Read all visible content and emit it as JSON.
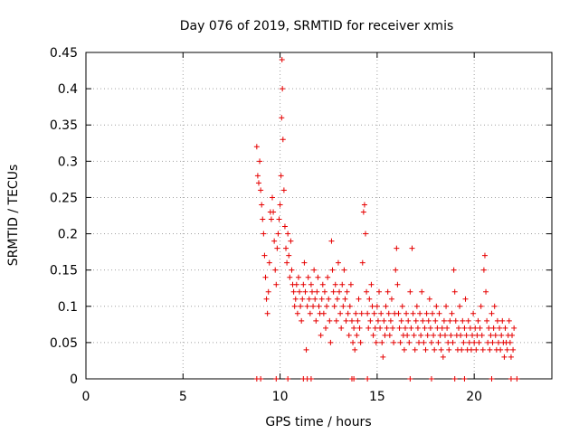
{
  "chart_data": {
    "type": "scatter",
    "title": "Day 076 of 2019, SRMTID for receiver xmis",
    "xlabel": "GPS time / hours",
    "ylabel": "SRMTID / TECUs",
    "xlim": [
      0,
      24
    ],
    "ylim": [
      0,
      0.45
    ],
    "xticks": [
      0,
      5,
      10,
      15,
      20
    ],
    "yticks": [
      0,
      0.05,
      0.1,
      0.15,
      0.2,
      0.25,
      0.3,
      0.35,
      0.4,
      0.45
    ],
    "xtick_labels": [
      "0",
      "5",
      "10",
      "15",
      "20"
    ],
    "ytick_labels": [
      "0",
      "0.05",
      "0.1",
      "0.15",
      "0.2",
      "0.25",
      "0.3",
      "0.35",
      "0.4",
      "0.45"
    ],
    "grid": true,
    "marker": "+",
    "color": "#e60000",
    "series": [
      {
        "name": "SRMTID",
        "points": [
          [
            8.8,
            0.32
          ],
          [
            8.85,
            0.28
          ],
          [
            8.9,
            0.27
          ],
          [
            8.95,
            0.3
          ],
          [
            9.0,
            0.26
          ],
          [
            9.05,
            0.24
          ],
          [
            9.1,
            0.22
          ],
          [
            9.15,
            0.2
          ],
          [
            9.2,
            0.17
          ],
          [
            9.25,
            0.14
          ],
          [
            9.3,
            0.11
          ],
          [
            9.35,
            0.09
          ],
          [
            9.4,
            0.12
          ],
          [
            9.45,
            0.16
          ],
          [
            9.5,
            0.23
          ],
          [
            9.55,
            0.22
          ],
          [
            9.6,
            0.25
          ],
          [
            9.65,
            0.23
          ],
          [
            9.7,
            0.19
          ],
          [
            9.75,
            0.15
          ],
          [
            9.8,
            0.13
          ],
          [
            9.85,
            0.18
          ],
          [
            9.9,
            0.2
          ],
          [
            9.95,
            0.22
          ],
          [
            10.0,
            0.24
          ],
          [
            10.05,
            0.28
          ],
          [
            10.08,
            0.36
          ],
          [
            10.1,
            0.44
          ],
          [
            10.12,
            0.4
          ],
          [
            10.15,
            0.33
          ],
          [
            10.2,
            0.26
          ],
          [
            10.25,
            0.21
          ],
          [
            10.3,
            0.18
          ],
          [
            10.35,
            0.16
          ],
          [
            10.4,
            0.2
          ],
          [
            10.45,
            0.17
          ],
          [
            10.5,
            0.14
          ],
          [
            10.55,
            0.19
          ],
          [
            10.6,
            0.15
          ],
          [
            10.65,
            0.13
          ],
          [
            10.7,
            0.12
          ],
          [
            10.75,
            0.1
          ],
          [
            10.8,
            0.11
          ],
          [
            10.85,
            0.13
          ],
          [
            10.9,
            0.09
          ],
          [
            10.95,
            0.14
          ],
          [
            11.0,
            0.12
          ],
          [
            11.05,
            0.1
          ],
          [
            11.1,
            0.08
          ],
          [
            11.15,
            0.11
          ],
          [
            11.2,
            0.13
          ],
          [
            11.25,
            0.16
          ],
          [
            11.3,
            0.12
          ],
          [
            11.35,
            0.04
          ],
          [
            11.4,
            0.1
          ],
          [
            11.45,
            0.14
          ],
          [
            11.5,
            0.11
          ],
          [
            11.55,
            0.09
          ],
          [
            11.6,
            0.13
          ],
          [
            11.65,
            0.12
          ],
          [
            11.7,
            0.1
          ],
          [
            11.75,
            0.15
          ],
          [
            11.8,
            0.11
          ],
          [
            11.85,
            0.08
          ],
          [
            11.9,
            0.12
          ],
          [
            11.95,
            0.14
          ],
          [
            12.0,
            0.1
          ],
          [
            12.05,
            0.09
          ],
          [
            12.1,
            0.06
          ],
          [
            12.15,
            0.11
          ],
          [
            12.2,
            0.13
          ],
          [
            12.25,
            0.09
          ],
          [
            12.3,
            0.12
          ],
          [
            12.35,
            0.07
          ],
          [
            12.4,
            0.1
          ],
          [
            12.45,
            0.14
          ],
          [
            12.5,
            0.11
          ],
          [
            12.55,
            0.08
          ],
          [
            12.6,
            0.05
          ],
          [
            12.65,
            0.19
          ],
          [
            12.7,
            0.15
          ],
          [
            12.75,
            0.12
          ],
          [
            12.8,
            0.1
          ],
          [
            12.85,
            0.13
          ],
          [
            12.9,
            0.08
          ],
          [
            12.95,
            0.11
          ],
          [
            13.0,
            0.16
          ],
          [
            13.05,
            0.12
          ],
          [
            13.1,
            0.09
          ],
          [
            13.15,
            0.07
          ],
          [
            13.2,
            0.13
          ],
          [
            13.25,
            0.1
          ],
          [
            13.3,
            0.15
          ],
          [
            13.35,
            0.11
          ],
          [
            13.4,
            0.08
          ],
          [
            13.45,
            0.12
          ],
          [
            13.5,
            0.09
          ],
          [
            13.55,
            0.06
          ],
          [
            13.6,
            0.1
          ],
          [
            13.65,
            0.13
          ],
          [
            13.7,
            0.08
          ],
          [
            13.75,
            0.05
          ],
          [
            13.8,
            0.07
          ],
          [
            13.85,
            0.04
          ],
          [
            13.9,
            0.09
          ],
          [
            13.95,
            0.06
          ],
          [
            14.0,
            0.08
          ],
          [
            14.05,
            0.11
          ],
          [
            14.1,
            0.07
          ],
          [
            14.15,
            0.05
          ],
          [
            14.2,
            0.09
          ],
          [
            14.25,
            0.16
          ],
          [
            14.3,
            0.23
          ],
          [
            14.35,
            0.24
          ],
          [
            14.4,
            0.2
          ],
          [
            14.45,
            0.12
          ],
          [
            14.5,
            0.09
          ],
          [
            14.55,
            0.07
          ],
          [
            14.6,
            0.11
          ],
          [
            14.65,
            0.08
          ],
          [
            14.7,
            0.13
          ],
          [
            14.75,
            0.1
          ],
          [
            14.8,
            0.06
          ],
          [
            14.85,
            0.09
          ],
          [
            14.9,
            0.07
          ],
          [
            14.95,
            0.05
          ],
          [
            15.0,
            0.1
          ],
          [
            15.05,
            0.08
          ],
          [
            15.1,
            0.12
          ],
          [
            15.15,
            0.07
          ],
          [
            15.2,
            0.09
          ],
          [
            15.25,
            0.05
          ],
          [
            15.3,
            0.03
          ],
          [
            15.35,
            0.08
          ],
          [
            15.4,
            0.06
          ],
          [
            15.45,
            0.1
          ],
          [
            15.5,
            0.07
          ],
          [
            15.55,
            0.12
          ],
          [
            15.6,
            0.09
          ],
          [
            15.65,
            0.06
          ],
          [
            15.7,
            0.08
          ],
          [
            15.75,
            0.11
          ],
          [
            15.8,
            0.07
          ],
          [
            15.85,
            0.05
          ],
          [
            15.9,
            0.09
          ],
          [
            15.95,
            0.15
          ],
          [
            16.0,
            0.18
          ],
          [
            16.05,
            0.13
          ],
          [
            16.1,
            0.09
          ],
          [
            16.15,
            0.07
          ],
          [
            16.2,
            0.05
          ],
          [
            16.25,
            0.08
          ],
          [
            16.3,
            0.1
          ],
          [
            16.35,
            0.06
          ],
          [
            16.4,
            0.04
          ],
          [
            16.45,
            0.07
          ],
          [
            16.5,
            0.09
          ],
          [
            16.55,
            0.06
          ],
          [
            16.6,
            0.08
          ],
          [
            16.65,
            0.05
          ],
          [
            16.7,
            0.12
          ],
          [
            16.75,
            0.07
          ],
          [
            16.8,
            0.18
          ],
          [
            16.85,
            0.09
          ],
          [
            16.9,
            0.06
          ],
          [
            16.95,
            0.04
          ],
          [
            17.0,
            0.08
          ],
          [
            17.05,
            0.1
          ],
          [
            17.1,
            0.07
          ],
          [
            17.15,
            0.05
          ],
          [
            17.2,
            0.09
          ],
          [
            17.25,
            0.06
          ],
          [
            17.3,
            0.12
          ],
          [
            17.35,
            0.08
          ],
          [
            17.4,
            0.05
          ],
          [
            17.45,
            0.07
          ],
          [
            17.5,
            0.04
          ],
          [
            17.55,
            0.09
          ],
          [
            17.6,
            0.06
          ],
          [
            17.65,
            0.08
          ],
          [
            17.7,
            0.11
          ],
          [
            17.75,
            0.07
          ],
          [
            17.8,
            0.05
          ],
          [
            17.85,
            0.09
          ],
          [
            17.9,
            0.06
          ],
          [
            17.95,
            0.04
          ],
          [
            18.0,
            0.08
          ],
          [
            18.05,
            0.1
          ],
          [
            18.1,
            0.07
          ],
          [
            18.15,
            0.05
          ],
          [
            18.2,
            0.09
          ],
          [
            18.25,
            0.06
          ],
          [
            18.3,
            0.04
          ],
          [
            18.35,
            0.07
          ],
          [
            18.4,
            0.03
          ],
          [
            18.45,
            0.08
          ],
          [
            18.5,
            0.06
          ],
          [
            18.55,
            0.1
          ],
          [
            18.6,
            0.07
          ],
          [
            18.65,
            0.05
          ],
          [
            18.7,
            0.04
          ],
          [
            18.75,
            0.08
          ],
          [
            18.8,
            0.06
          ],
          [
            18.85,
            0.09
          ],
          [
            18.9,
            0.05
          ],
          [
            18.95,
            0.15
          ],
          [
            19.0,
            0.12
          ],
          [
            19.05,
            0.08
          ],
          [
            19.1,
            0.06
          ],
          [
            19.15,
            0.04
          ],
          [
            19.2,
            0.07
          ],
          [
            19.25,
            0.1
          ],
          [
            19.3,
            0.06
          ],
          [
            19.35,
            0.04
          ],
          [
            19.4,
            0.08
          ],
          [
            19.45,
            0.05
          ],
          [
            19.5,
            0.07
          ],
          [
            19.55,
            0.11
          ],
          [
            19.6,
            0.06
          ],
          [
            19.65,
            0.04
          ],
          [
            19.7,
            0.08
          ],
          [
            19.75,
            0.05
          ],
          [
            19.8,
            0.07
          ],
          [
            19.85,
            0.04
          ],
          [
            19.9,
            0.06
          ],
          [
            19.95,
            0.09
          ],
          [
            20.0,
            0.05
          ],
          [
            20.05,
            0.07
          ],
          [
            20.1,
            0.04
          ],
          [
            20.15,
            0.06
          ],
          [
            20.2,
            0.08
          ],
          [
            20.25,
            0.05
          ],
          [
            20.3,
            0.07
          ],
          [
            20.35,
            0.1
          ],
          [
            20.4,
            0.06
          ],
          [
            20.45,
            0.04
          ],
          [
            20.5,
            0.15
          ],
          [
            20.55,
            0.17
          ],
          [
            20.6,
            0.12
          ],
          [
            20.65,
            0.08
          ],
          [
            20.7,
            0.05
          ],
          [
            20.75,
            0.07
          ],
          [
            20.8,
            0.04
          ],
          [
            20.85,
            0.06
          ],
          [
            20.9,
            0.09
          ],
          [
            20.95,
            0.05
          ],
          [
            21.0,
            0.07
          ],
          [
            21.05,
            0.1
          ],
          [
            21.1,
            0.06
          ],
          [
            21.15,
            0.04
          ],
          [
            21.2,
            0.08
          ],
          [
            21.25,
            0.05
          ],
          [
            21.3,
            0.07
          ],
          [
            21.35,
            0.04
          ],
          [
            21.4,
            0.06
          ],
          [
            21.45,
            0.08
          ],
          [
            21.5,
            0.05
          ],
          [
            21.55,
            0.03
          ],
          [
            21.6,
            0.07
          ],
          [
            21.65,
            0.05
          ],
          [
            21.7,
            0.04
          ],
          [
            21.75,
            0.06
          ],
          [
            21.8,
            0.08
          ],
          [
            21.85,
            0.05
          ],
          [
            21.9,
            0.03
          ],
          [
            21.95,
            0.06
          ],
          [
            22.0,
            0.04
          ],
          [
            22.05,
            0.07
          ],
          [
            8.8,
            0
          ],
          [
            9.0,
            0
          ],
          [
            9.8,
            0
          ],
          [
            10.4,
            0
          ],
          [
            11.2,
            0
          ],
          [
            11.4,
            0
          ],
          [
            11.6,
            0
          ],
          [
            13.7,
            0
          ],
          [
            13.8,
            0
          ],
          [
            14.5,
            0
          ],
          [
            16.7,
            0
          ],
          [
            17.8,
            0
          ],
          [
            19.0,
            0
          ],
          [
            19.5,
            0
          ],
          [
            20.9,
            0
          ],
          [
            21.9,
            0
          ],
          [
            22.2,
            0
          ]
        ]
      }
    ]
  }
}
